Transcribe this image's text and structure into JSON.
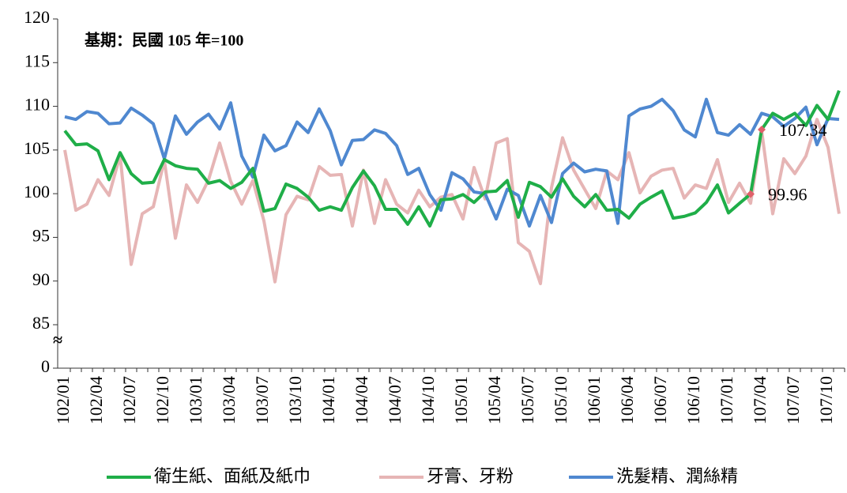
{
  "chart_data": {
    "type": "line",
    "title": "基期：民國 105 年=100",
    "categories": [
      "102/01",
      null,
      null,
      "102/04",
      null,
      null,
      "102/07",
      null,
      null,
      "102/10",
      null,
      null,
      "103/01",
      null,
      null,
      "103/04",
      null,
      null,
      "103/07",
      null,
      null,
      "103/10",
      null,
      null,
      "104/01",
      null,
      null,
      "104/04",
      null,
      null,
      "104/07",
      null,
      null,
      "104/10",
      null,
      null,
      "105/01",
      null,
      null,
      "105/04",
      null,
      null,
      "105/07",
      null,
      null,
      "105/10",
      null,
      null,
      "106/01",
      null,
      null,
      "106/04",
      null,
      null,
      "106/07",
      null,
      null,
      "106/10",
      null,
      null,
      "107/01",
      null,
      null,
      "107/04",
      null,
      null,
      "107/07",
      null,
      null,
      "107/10",
      null
    ],
    "series": [
      {
        "name": "衛生紙、面紙及紙巾",
        "color": "#1fae48",
        "values": [
          107.2,
          105.6,
          105.7,
          104.9,
          101.6,
          104.7,
          102.3,
          101.2,
          101.3,
          103.9,
          103.2,
          102.9,
          102.8,
          101.2,
          101.5,
          100.6,
          101.3,
          102.9,
          98.0,
          98.3,
          101.1,
          100.6,
          99.6,
          98.1,
          98.5,
          98.1,
          100.7,
          102.6,
          100.9,
          98.2,
          98.2,
          96.5,
          98.5,
          96.3,
          99.3,
          99.4,
          99.9,
          99.0,
          100.2,
          100.3,
          101.5,
          97.3,
          101.3,
          100.8,
          99.6,
          101.7,
          99.7,
          98.5,
          99.9,
          98.1,
          98.2,
          97.2,
          98.8,
          99.6,
          100.3,
          97.2,
          97.4,
          97.8,
          99.0,
          101.0,
          97.8,
          98.9,
          99.96,
          107.34,
          109.2,
          108.5,
          109.2,
          107.8,
          110.1,
          108.5,
          111.8
        ],
        "value_labels": [
          null,
          null,
          null,
          null,
          null,
          null,
          null,
          null,
          null,
          null,
          null,
          null,
          null,
          null,
          null,
          null,
          null,
          null,
          null,
          null,
          null,
          null,
          null,
          null,
          null,
          null,
          null,
          null,
          null,
          null,
          null,
          null,
          null,
          null,
          null,
          null,
          null,
          null,
          null,
          null,
          null,
          null,
          null,
          null,
          null,
          null,
          null,
          null,
          null,
          null,
          null,
          null,
          null,
          null,
          null,
          null,
          null,
          null,
          null,
          null,
          null,
          null,
          "99.96",
          "107.34",
          null,
          null,
          null,
          null,
          null,
          null,
          null
        ]
      },
      {
        "name": "牙膏、牙粉",
        "color": "#e6b5b5",
        "values": [
          105.0,
          98.1,
          98.8,
          101.6,
          99.8,
          104.4,
          91.9,
          97.7,
          98.5,
          103.8,
          94.9,
          101.0,
          99.0,
          101.6,
          105.8,
          101.4,
          98.8,
          101.5,
          96.9,
          89.9,
          97.6,
          99.7,
          99.3,
          103.1,
          102.1,
          102.2,
          96.3,
          102.7,
          96.6,
          101.6,
          98.8,
          97.8,
          100.4,
          98.5,
          99.6,
          99.9,
          97.1,
          103.0,
          99.4,
          105.8,
          106.3,
          94.4,
          93.4,
          89.7,
          100.7,
          106.4,
          102.7,
          100.5,
          98.3,
          102.6,
          101.6,
          104.7,
          100.1,
          102.0,
          102.7,
          102.9,
          99.5,
          101.0,
          100.6,
          103.9,
          99.0,
          101.2,
          98.9,
          107.2,
          97.7,
          104.0,
          102.3,
          104.3,
          108.5,
          105.3,
          97.7
        ]
      },
      {
        "name": "洗髮精、潤絲精",
        "color": "#4f88d0",
        "values": [
          108.8,
          108.5,
          109.4,
          109.2,
          108.0,
          108.1,
          109.8,
          109.0,
          108.0,
          104.0,
          108.9,
          106.8,
          108.2,
          109.1,
          107.4,
          110.4,
          104.3,
          101.9,
          106.7,
          104.9,
          105.5,
          108.2,
          107.0,
          109.7,
          107.2,
          103.3,
          106.1,
          106.2,
          107.3,
          106.9,
          105.5,
          102.2,
          102.9,
          99.9,
          98.1,
          102.4,
          101.7,
          100.2,
          100.0,
          97.1,
          100.5,
          99.8,
          96.3,
          99.8,
          96.7,
          102.3,
          103.5,
          102.5,
          102.8,
          102.6,
          96.6,
          108.9,
          109.7,
          110.0,
          110.8,
          109.5,
          107.3,
          106.5,
          110.8,
          107.0,
          106.7,
          107.9,
          106.8,
          109.2,
          108.8,
          107.7,
          108.6,
          109.9,
          105.6,
          108.6,
          108.5
        ]
      }
    ],
    "ylim": [
      0,
      120
    ],
    "yticks": [
      0,
      85,
      90,
      95,
      100,
      105,
      110,
      115,
      120
    ],
    "axis_break": {
      "label": "≈",
      "range": [
        0,
        85
      ]
    },
    "label_marker_color": "#e0606a",
    "legend": "bottom"
  }
}
